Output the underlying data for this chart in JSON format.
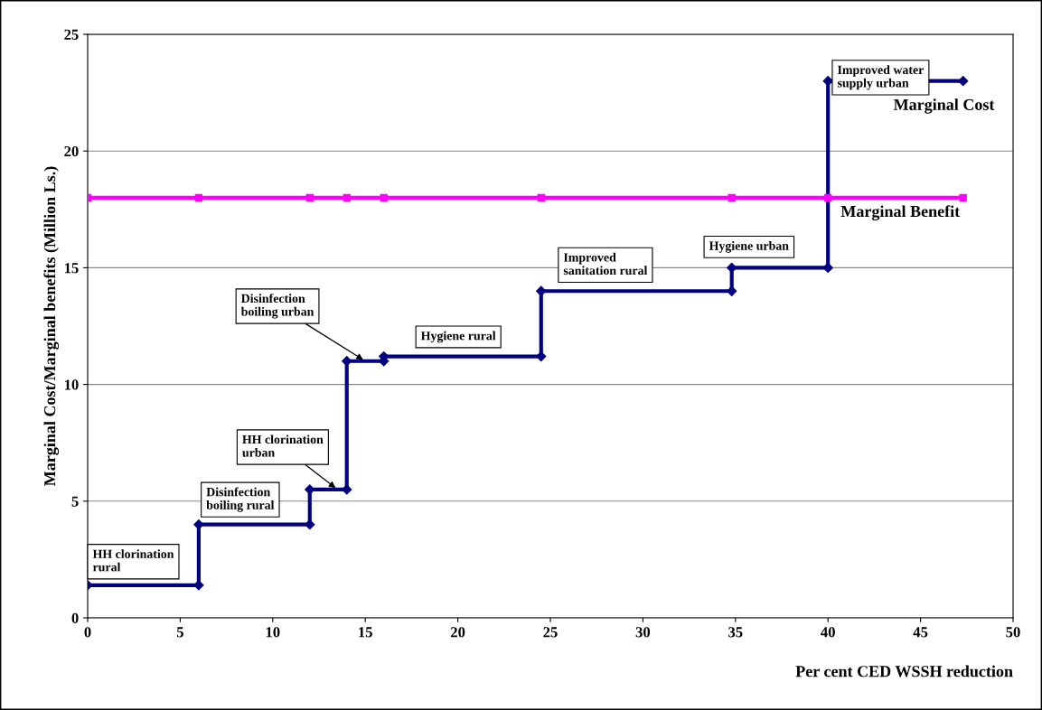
{
  "chart_data": {
    "type": "line",
    "xlabel": "Per cent CED WSSH reduction",
    "ylabel": "Marginal Cost/Marginal benefits (Million Ls.)",
    "xlim": [
      0,
      50
    ],
    "xticks": [
      0,
      5,
      10,
      15,
      20,
      25,
      30,
      35,
      40,
      45,
      50
    ],
    "ylim": [
      0,
      25
    ],
    "yticks": [
      0,
      5,
      10,
      15,
      20,
      25
    ],
    "grid": "y",
    "legend": false,
    "series": [
      {
        "name": "Marginal Cost",
        "color": "#000080",
        "marker": "diamond",
        "x": [
          0,
          6,
          6,
          12,
          12,
          14,
          14,
          16,
          16,
          24.5,
          24.5,
          34.8,
          34.8,
          40,
          40,
          47.3
        ],
        "values": [
          1.4,
          1.4,
          4,
          4,
          5.5,
          5.5,
          11,
          11,
          11.2,
          11.2,
          14,
          14,
          15,
          15,
          23,
          23
        ]
      },
      {
        "name": "Marginal Benefit",
        "color": "#ff00ff",
        "marker": "square",
        "x": [
          0,
          6,
          12,
          14,
          16,
          24.5,
          34.8,
          40,
          47.3
        ],
        "values": [
          18,
          18,
          18,
          18,
          18,
          18,
          18,
          18,
          18
        ]
      }
    ],
    "annotations": [
      {
        "text": "HH clorination\nrural",
        "x": 0,
        "y": 1.4
      },
      {
        "text": "Disinfection\nboiling rural",
        "x": 6,
        "y": 4
      },
      {
        "text": "HH clorination\nurban",
        "x": 13.5,
        "y": 5.5
      },
      {
        "text": "Disinfection\nboiling urban",
        "x": 15,
        "y": 11
      },
      {
        "text": "Hygiene rural",
        "x": 17.8,
        "y": 11.2
      },
      {
        "text": "Improved\nsanitation rural",
        "x": 25.5,
        "y": 14
      },
      {
        "text": "Hygiene urban",
        "x": 35,
        "y": 15
      },
      {
        "text": "Improved water\nsupply urban",
        "x": 40.3,
        "y": 23
      }
    ]
  }
}
